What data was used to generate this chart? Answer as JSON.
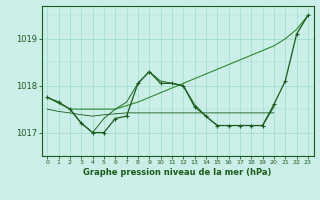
{
  "background_color": "#cceee8",
  "grid_color": "#99ddcc",
  "line_color_dark": "#1a5c1a",
  "title": "Graphe pression niveau de la mer (hPa)",
  "xlim": [
    -0.5,
    23.5
  ],
  "ylim": [
    1016.5,
    1019.7
  ],
  "yticks": [
    1017,
    1018,
    1019
  ],
  "xticks": [
    0,
    1,
    2,
    3,
    4,
    5,
    6,
    7,
    8,
    9,
    10,
    11,
    12,
    13,
    14,
    15,
    16,
    17,
    18,
    19,
    20,
    21,
    22,
    23
  ],
  "line1_x": [
    0,
    1,
    2,
    3,
    4,
    5,
    6,
    7,
    8,
    9,
    10,
    11,
    12,
    13,
    14,
    15,
    16,
    17,
    18,
    19,
    20,
    21,
    22,
    23
  ],
  "line1_y": [
    1017.75,
    1017.65,
    1017.5,
    1017.2,
    1017.0,
    1017.0,
    1017.3,
    1017.35,
    1018.05,
    1018.3,
    1018.05,
    1018.05,
    1018.0,
    1017.55,
    1017.35,
    1017.15,
    1017.15,
    1017.15,
    1017.15,
    1017.15,
    1017.6,
    1018.1,
    1019.1,
    1019.5
  ],
  "line1_color": "#1a5c1a",
  "line1_lw": 0.9,
  "line1_marker": "+",
  "line1_ms": 3.5,
  "line2_x": [
    0,
    2,
    4,
    6,
    8,
    10,
    12,
    14,
    16,
    18,
    20,
    21,
    22,
    23
  ],
  "line2_y": [
    1017.75,
    1017.5,
    1017.5,
    1017.5,
    1017.65,
    1017.85,
    1018.05,
    1018.25,
    1018.45,
    1018.65,
    1018.85,
    1019.0,
    1019.2,
    1019.5
  ],
  "line2_color": "#2d8c2d",
  "line2_lw": 0.8,
  "line3_x": [
    0,
    1,
    2,
    3,
    4,
    5,
    6,
    7,
    8,
    9,
    10,
    11,
    12,
    13,
    14,
    15,
    16,
    17,
    18,
    19,
    20
  ],
  "line3_y": [
    1017.5,
    1017.45,
    1017.42,
    1017.38,
    1017.35,
    1017.38,
    1017.4,
    1017.42,
    1017.42,
    1017.42,
    1017.42,
    1017.42,
    1017.42,
    1017.42,
    1017.42,
    1017.42,
    1017.42,
    1017.42,
    1017.42,
    1017.42,
    1017.42
  ],
  "line3_color": "#1a5c1a",
  "line3_lw": 0.6,
  "line4_x": [
    2,
    3,
    4,
    5,
    6,
    7,
    8,
    9,
    10,
    11,
    12,
    13,
    14,
    15,
    16,
    17,
    18,
    19,
    20
  ],
  "line4_y": [
    1017.5,
    1017.2,
    1017.0,
    1017.3,
    1017.5,
    1017.65,
    1018.05,
    1018.3,
    1018.1,
    1018.05,
    1018.0,
    1017.6,
    1017.35,
    1017.15,
    1017.15,
    1017.15,
    1017.15,
    1017.15,
    1017.55
  ],
  "line4_color": "#1a6c1a",
  "line4_lw": 0.7
}
